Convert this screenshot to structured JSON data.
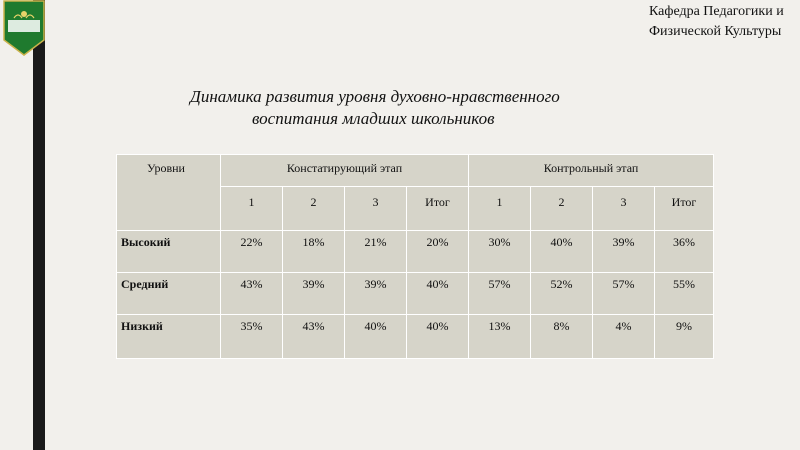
{
  "logo": {
    "text": "Бел ГУ"
  },
  "department": {
    "line1": "Кафедра Педагогики и",
    "line2": "Физической Культуры"
  },
  "title": {
    "line1": "Динамика развития уровня духовно-нравственного",
    "line2": "воспитания младших школьников"
  },
  "table": {
    "header_levels": "Уровни",
    "group1": "Констатирующий этап",
    "group2": "Контрольный этап",
    "subheaders": [
      "1",
      "2",
      "3",
      "Итог",
      "1",
      "2",
      "3",
      "Итог"
    ],
    "rows": [
      {
        "label": "Высокий",
        "values": [
          "22%",
          "18%",
          "21%",
          "20%",
          "30%",
          "40%",
          "39%",
          "36%"
        ]
      },
      {
        "label": "Средний",
        "values": [
          "43%",
          "39%",
          "39%",
          "40%",
          "57%",
          "52%",
          "57%",
          "55%"
        ]
      },
      {
        "label": "Низкий",
        "values": [
          "35%",
          "43%",
          "40%",
          "40%",
          "13%",
          "8%",
          "4%",
          "9%"
        ]
      }
    ]
  },
  "colors": {
    "background": "#f2f0ec",
    "cell": "#d6d4c9",
    "bar": "#1a1a1a",
    "logo_green": "#1f7a2e"
  }
}
